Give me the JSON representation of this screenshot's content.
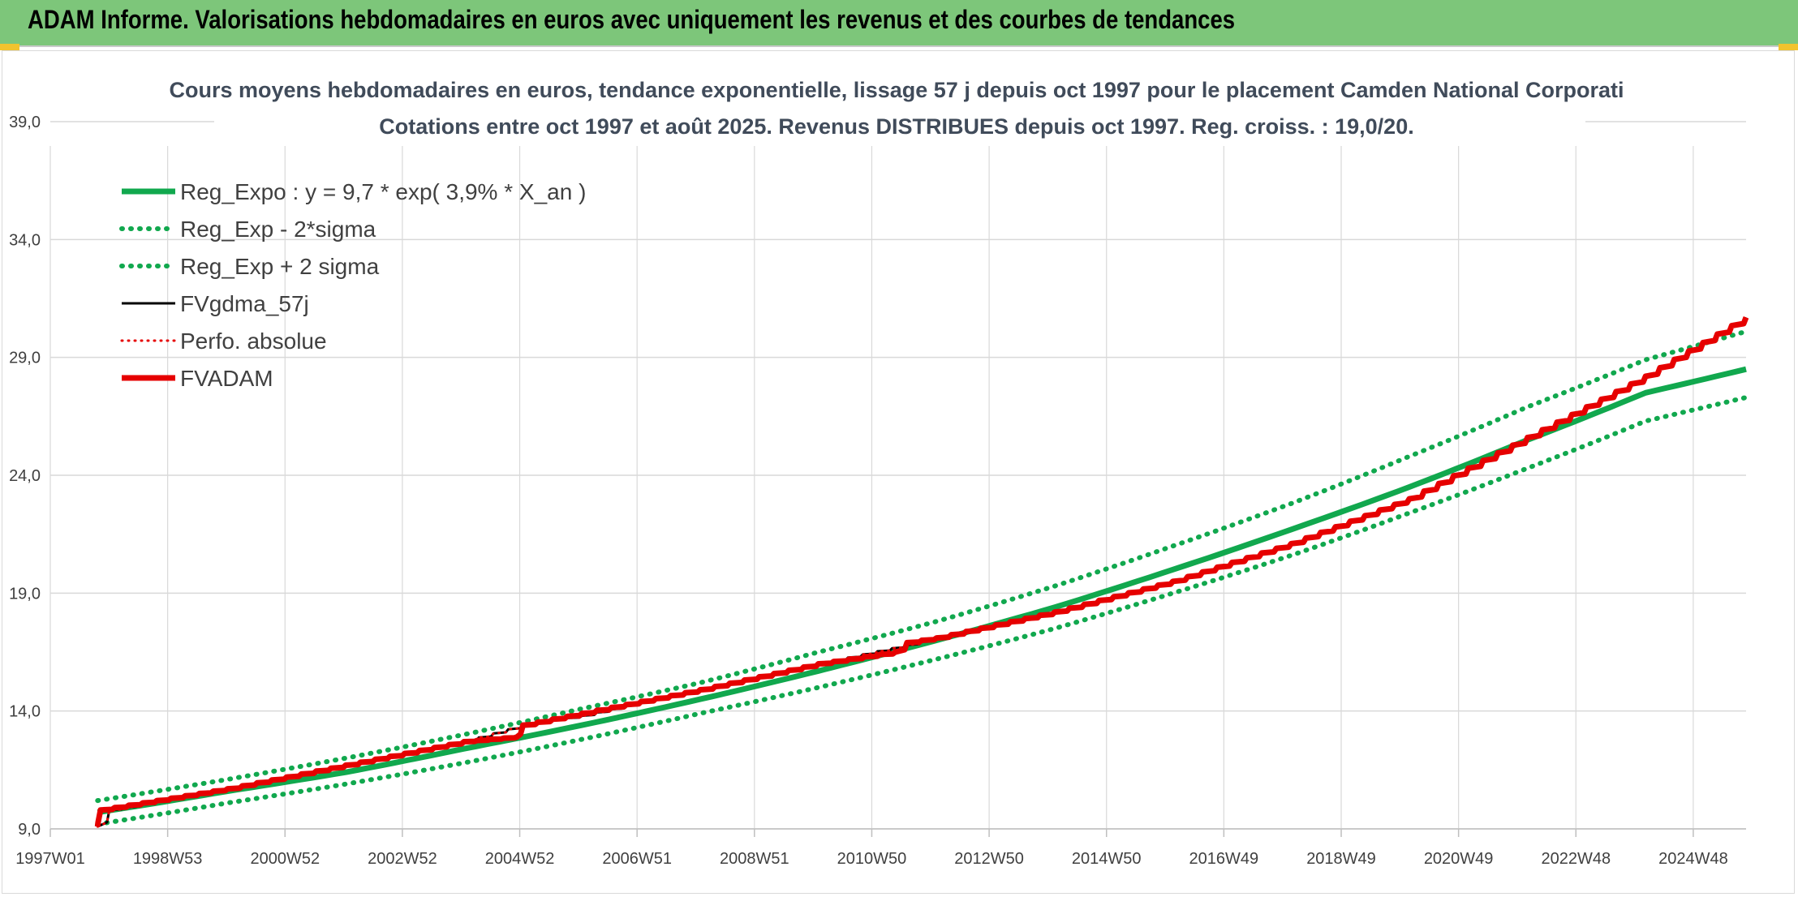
{
  "header": {
    "title": "ADAM Informe. Valorisations hebdomadaires en euros avec uniquement les revenus et des courbes de tendances"
  },
  "colors": {
    "header_bg": "#7dc67a",
    "trend": "#11a84e",
    "fvadam": "#e60000",
    "fvgdma": "#000000",
    "gridline": "#d9d9d9"
  },
  "chart_data": {
    "type": "line",
    "title": "Cours moyens hebdomadaires en euros, tendance exponentielle, lissage 57 j depuis oct 1997 pour le placement Camden National Corporati",
    "subtitle": "Cotations entre oct 1997 et août 2025. Revenus DISTRIBUES depuis oct 1997. Reg. croiss. : 19,0/20.",
    "xlabel": "",
    "ylabel": "",
    "y_ticks": [
      "9,0",
      "14,0",
      "19,0",
      "24,0",
      "29,0",
      "34,0",
      "39,0"
    ],
    "ylim": [
      9,
      39
    ],
    "x_ticks": [
      "1997W01",
      "1998W53",
      "2000W52",
      "2002W52",
      "2004W52",
      "2006W51",
      "2008W51",
      "2010W50",
      "2012W50",
      "2014W50",
      "2016W49",
      "2018W49",
      "2020W49",
      "2022W48",
      "2024W48"
    ],
    "x_range_years": [
      1997.0,
      2025.7
    ],
    "grid": true,
    "legend_position": "top-left",
    "legend": [
      "Reg_Expo : y = 9,7 * exp( 3,9% *  X_an )",
      "Reg_Exp - 2*sigma",
      "Reg_Exp + 2 sigma",
      "FVgdma_57j",
      "Perfo. absolue",
      "FVADAM"
    ],
    "series": [
      {
        "name": "Reg_Expo : y = 9,7 * exp( 3,9% *  X_an )",
        "style": "solid",
        "x": [
          1997.8,
          2000,
          2002,
          2004,
          2006,
          2008,
          2010,
          2012,
          2014,
          2016,
          2018,
          2020,
          2022,
          2024,
          2025.7
        ],
        "values": [
          9.7,
          10.6,
          11.4,
          12.4,
          13.4,
          14.5,
          15.7,
          17.0,
          18.4,
          20.0,
          21.7,
          23.5,
          25.5,
          27.5,
          28.5
        ]
      },
      {
        "name": "Reg_Exp - 2*sigma",
        "style": "dotted",
        "x": [
          1997.8,
          2000,
          2002,
          2004,
          2006,
          2008,
          2010,
          2012,
          2014,
          2016,
          2018,
          2020,
          2022,
          2024,
          2025.7
        ],
        "values": [
          9.2,
          10.1,
          10.9,
          11.8,
          12.8,
          13.9,
          15.0,
          16.2,
          17.5,
          19.0,
          20.6,
          22.4,
          24.3,
          26.3,
          27.3
        ]
      },
      {
        "name": "Reg_Exp + 2 sigma",
        "style": "dotted",
        "x": [
          1997.8,
          2000,
          2002,
          2004,
          2006,
          2008,
          2010,
          2012,
          2014,
          2016,
          2018,
          2020,
          2022,
          2024,
          2025.7
        ],
        "values": [
          10.2,
          11.1,
          12.0,
          13.0,
          14.1,
          15.2,
          16.5,
          17.8,
          19.3,
          21.0,
          22.8,
          24.8,
          26.9,
          28.9,
          30.1
        ]
      },
      {
        "name": "FVgdma_57j",
        "style": "solid",
        "x": [
          1997.8,
          1998,
          2000,
          2002,
          2004,
          2005,
          2006,
          2008,
          2010,
          2011.5,
          2012,
          2014,
          2016,
          2018,
          2020,
          2022,
          2024,
          2025.7
        ],
        "values": [
          9.1,
          9.8,
          10.7,
          11.7,
          12.7,
          13.4,
          13.8,
          14.9,
          16.0,
          16.8,
          17.1,
          18.2,
          19.5,
          21.1,
          23.0,
          25.6,
          28.2,
          30.7
        ]
      },
      {
        "name": "Perfo. absolue",
        "style": "dotted",
        "x": [
          1997.8,
          1998,
          2000,
          2002,
          2004,
          2005,
          2006,
          2008,
          2010,
          2011.5,
          2012,
          2014,
          2016,
          2018,
          2020,
          2022,
          2024,
          2025.7
        ],
        "values": [
          9.1,
          9.8,
          10.7,
          11.7,
          12.7,
          13.4,
          13.8,
          14.9,
          16.0,
          16.8,
          17.1,
          18.2,
          19.5,
          21.1,
          23.0,
          25.6,
          28.2,
          30.7
        ]
      },
      {
        "name": "FVADAM",
        "style": "solid",
        "x": [
          1997.8,
          1997.85,
          2000,
          2002,
          2004,
          2004.9,
          2005.0,
          2006,
          2008,
          2010,
          2011.3,
          2011.5,
          2012,
          2014,
          2016,
          2018,
          2020,
          2022,
          2024,
          2025.7
        ],
        "values": [
          9.1,
          9.8,
          10.7,
          11.7,
          12.7,
          12.9,
          13.4,
          13.9,
          14.9,
          16.0,
          16.5,
          16.9,
          17.1,
          18.2,
          19.5,
          21.1,
          23.0,
          25.6,
          28.2,
          30.7
        ]
      }
    ]
  }
}
